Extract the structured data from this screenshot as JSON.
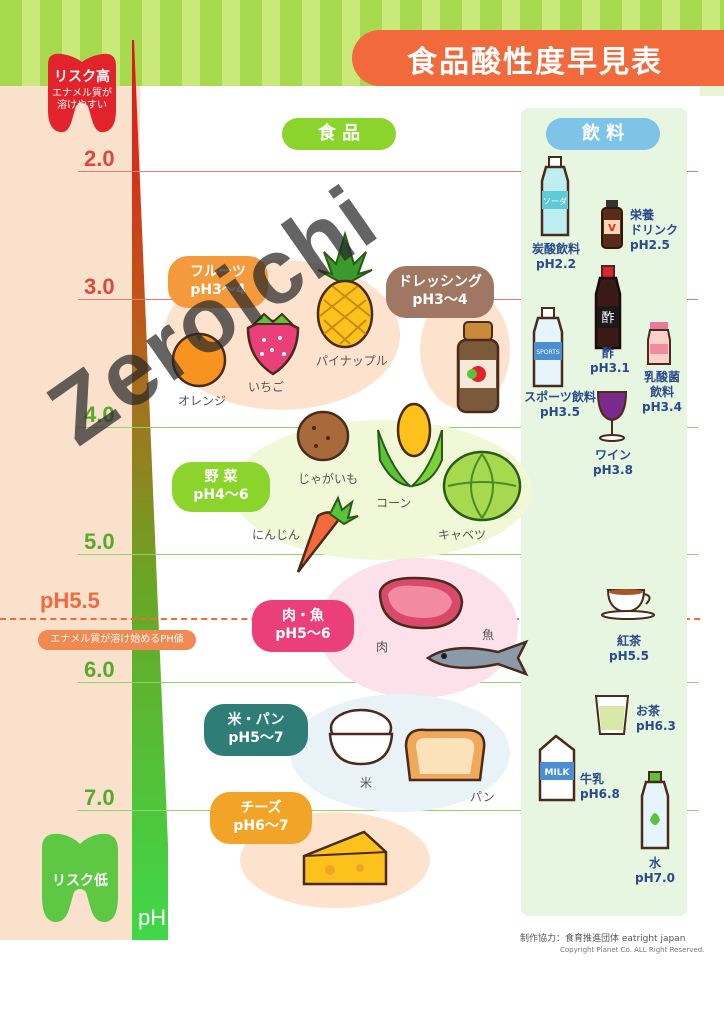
{
  "header": {
    "title": "食品酸性度早見表"
  },
  "risk": {
    "high": "リスク高",
    "high_sub1": "エナメル質が",
    "high_sub2": "溶けやすい",
    "low": "リスク低",
    "ph": "pH"
  },
  "threshold": {
    "value": "pH5.5",
    "note": "エナメル質が溶け始めるPH値"
  },
  "sections": {
    "food": "食 品",
    "drinks": "飲 料"
  },
  "chart_data": {
    "type": "table",
    "title": "食品酸性度早見表",
    "axis": {
      "label": "pH",
      "ticks": [
        "2.0",
        "3.0",
        "4.0",
        "5.0",
        "6.0",
        "7.0"
      ],
      "range": [
        2.0,
        7.0
      ],
      "threshold": 5.5
    },
    "food_groups": [
      {
        "name": "フルーツ",
        "range": "pH3〜4",
        "items": [
          "オレンジ",
          "いちご",
          "パイナップル"
        ]
      },
      {
        "name": "ドレッシング",
        "range": "pH3〜4",
        "items": []
      },
      {
        "name": "野 菜",
        "range": "pH4〜6",
        "items": [
          "じゃがいも",
          "コーン",
          "キャベツ",
          "にんじん"
        ]
      },
      {
        "name": "肉・魚",
        "range": "pH5〜6",
        "items": [
          "肉",
          "魚"
        ]
      },
      {
        "name": "米・パン",
        "range": "pH5〜7",
        "items": [
          "米",
          "パン"
        ]
      },
      {
        "name": "チーズ",
        "range": "pH6〜7",
        "items": []
      }
    ],
    "drinks": [
      {
        "name": "炭酸飲料",
        "ph": "pH2.2",
        "value": 2.2
      },
      {
        "name": "栄養ドリンク",
        "ph": "pH2.5",
        "value": 2.5
      },
      {
        "name": "酢",
        "ph": "pH3.1",
        "value": 3.1
      },
      {
        "name": "スポーツ飲料",
        "ph": "pH3.5",
        "value": 3.5
      },
      {
        "name": "乳酸菌飲料",
        "ph": "pH3.4",
        "value": 3.4
      },
      {
        "name": "ワイン",
        "ph": "pH3.8",
        "value": 3.8
      },
      {
        "name": "紅茶",
        "ph": "pH5.5",
        "value": 5.5
      },
      {
        "name": "お茶",
        "ph": "pH6.3",
        "value": 6.3
      },
      {
        "name": "牛乳",
        "ph": "pH6.8",
        "value": 6.8
      },
      {
        "name": "水",
        "ph": "pH7.0",
        "value": 7.0
      }
    ]
  },
  "drink_text": {
    "soda_line1": "炭酸飲料",
    "soda_line2": "pH2.2",
    "energy_line1": "栄養",
    "energy_line2": "ドリンク",
    "energy_line3": "pH2.5",
    "vinegar_line1": "酢",
    "vinegar_line2": "pH3.1",
    "sports_line1": "スポーツ飲料",
    "sports_line2": "pH3.5",
    "lactic_line1": "乳酸菌",
    "lactic_line2": "飲料",
    "lactic_line3": "pH3.4",
    "wine_line1": "ワイン",
    "wine_line2": "pH3.8",
    "tea_line1": "紅茶",
    "tea_line2": "pH5.5",
    "greentea_line1": "お茶",
    "greentea_line2": "pH6.3",
    "milk_line1": "牛乳",
    "milk_line2": "pH6.8",
    "water_line1": "水",
    "water_line2": "pH7.0",
    "soda_bottle": "ソーダ",
    "vinegar_bottle": "酢",
    "milk_carton": "MILK",
    "sports_bottle": "SPORTS",
    "energy_label": "V"
  },
  "footer": {
    "credit": "制作協力：食育推進団体 eatright japan",
    "copyright": "Copyright Planet Co. ALL Right Reserved."
  },
  "watermark": "Zeroichi",
  "colors": {
    "title": "#f26a3b",
    "green": "#8bd42b",
    "red": "#e0463b",
    "blue_pill": "#7ec3e8",
    "drink_text": "#2a4a8c"
  }
}
